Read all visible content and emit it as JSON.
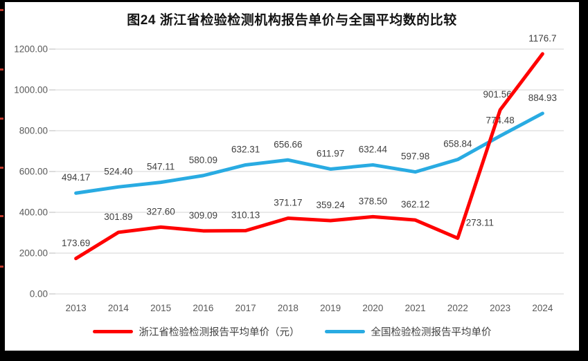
{
  "page": {
    "title": "图24  浙江省检验检测机构报告单价与全国平均数的比较"
  },
  "chart_data": {
    "type": "line",
    "title": "图24  浙江省检验检测机构报告单价与全国平均数的比较",
    "categories": [
      "2013",
      "2014",
      "2015",
      "2016",
      "2017",
      "2018",
      "2019",
      "2020",
      "2021",
      "2022",
      "2023",
      "2024"
    ],
    "series": [
      {
        "name": "浙江省检验检测报告平均单价（元）",
        "color": "#FF0000",
        "values": [
          173.69,
          301.89,
          327.6,
          309.09,
          310.13,
          371.17,
          359.24,
          378.5,
          362.12,
          273.11,
          901.56,
          1176.7
        ],
        "labels": [
          "173.69",
          "301.89",
          "327.60",
          "309.09",
          "310.13",
          "371.17",
          "359.24",
          "378.50",
          "362.12",
          "273.11",
          "901.56",
          "1176.7"
        ]
      },
      {
        "name": "全国检验检测报告平均单价",
        "color": "#29ABE2",
        "values": [
          494.17,
          524.4,
          547.11,
          580.09,
          632.31,
          656.66,
          611.97,
          632.44,
          597.98,
          658.84,
          774.48,
          884.93
        ],
        "labels": [
          "494.17",
          "524.40",
          "547.11",
          "580.09",
          "632.31",
          "656.66",
          "611.97",
          "632.44",
          "597.98",
          "658.84",
          "774.48",
          "884.93"
        ]
      }
    ],
    "ylim": [
      0,
      1200
    ],
    "ytick_step": 200,
    "ytick_labels": [
      "0.00",
      "200.00",
      "400.00",
      "600.00",
      "800.00",
      "1000.00",
      "1200.00"
    ],
    "xlabel": "",
    "ylabel": "",
    "grid": true,
    "legend_position": "bottom",
    "gridline_color": "#DCDCDC",
    "tick_color": "#C9C9C9",
    "axis_label_color": "#595959",
    "data_label_color": "#404040",
    "label_offsets": {
      "0": {
        "9": [
          32,
          0
        ],
        "10": [
          -4,
          0
        ]
      }
    }
  },
  "decoration": {
    "left_edge_marks_y": [
      13,
      99,
      170,
      241,
      311,
      384
    ]
  }
}
